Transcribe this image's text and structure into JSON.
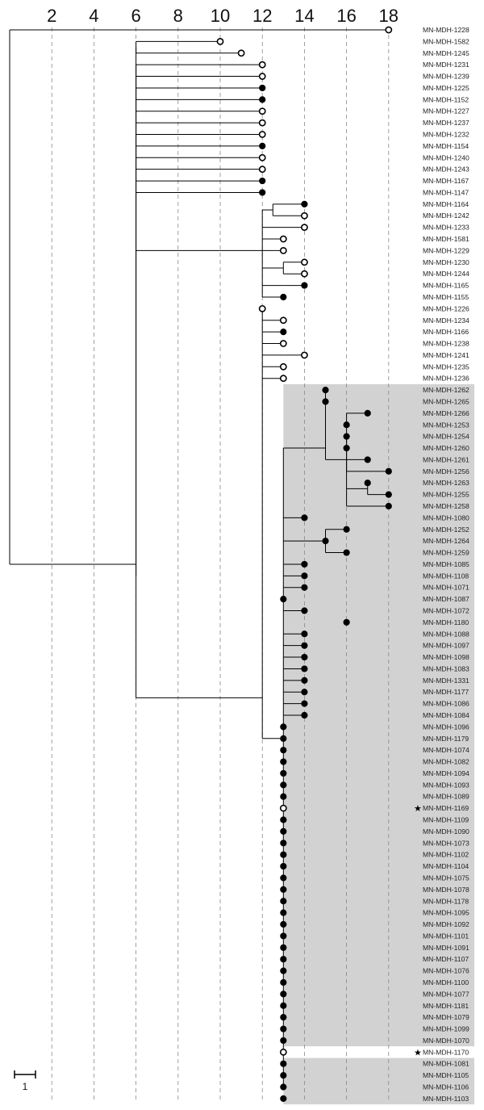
{
  "chart_data": {
    "type": "dendrogram",
    "axis_ticks": [
      2,
      4,
      6,
      8,
      10,
      12,
      14,
      16,
      18
    ],
    "scale_bar_label": "1",
    "colors": {
      "shade": "#d2d2d2",
      "line": "#000000",
      "grid": "#888888"
    },
    "leaves": [
      {
        "label": "MN-MDH-1228",
        "x": 18,
        "filled": false
      },
      {
        "label": "MN-MDH-1582",
        "x": 10,
        "filled": false
      },
      {
        "label": "MN-MDH-1245",
        "x": 11,
        "filled": false
      },
      {
        "label": "MN-MDH-1231",
        "x": 12,
        "filled": false
      },
      {
        "label": "MN-MDH-1239",
        "x": 12,
        "filled": false
      },
      {
        "label": "MN-MDH-1225",
        "x": 12,
        "filled": true
      },
      {
        "label": "MN-MDH-1152",
        "x": 12,
        "filled": true
      },
      {
        "label": "MN-MDH-1227",
        "x": 12,
        "filled": false
      },
      {
        "label": "MN-MDH-1237",
        "x": 12,
        "filled": false
      },
      {
        "label": "MN-MDH-1232",
        "x": 12,
        "filled": false
      },
      {
        "label": "MN-MDH-1154",
        "x": 12,
        "filled": true
      },
      {
        "label": "MN-MDH-1240",
        "x": 12,
        "filled": false
      },
      {
        "label": "MN-MDH-1243",
        "x": 12,
        "filled": false
      },
      {
        "label": "MN-MDH-1167",
        "x": 12,
        "filled": true
      },
      {
        "label": "MN-MDH-1147",
        "x": 12,
        "filled": true
      },
      {
        "label": "MN-MDH-1164",
        "x": 14,
        "filled": true
      },
      {
        "label": "MN-MDH-1242",
        "x": 14,
        "filled": false
      },
      {
        "label": "MN-MDH-1233",
        "x": 14,
        "filled": false
      },
      {
        "label": "MN-MDH-1581",
        "x": 13,
        "filled": false
      },
      {
        "label": "MN-MDH-1229",
        "x": 13,
        "filled": false
      },
      {
        "label": "MN-MDH-1230",
        "x": 14,
        "filled": false
      },
      {
        "label": "MN-MDH-1244",
        "x": 14,
        "filled": false
      },
      {
        "label": "MN-MDH-1165",
        "x": 14,
        "filled": true
      },
      {
        "label": "MN-MDH-1155",
        "x": 13,
        "filled": true
      },
      {
        "label": "MN-MDH-1226",
        "x": 12,
        "filled": false
      },
      {
        "label": "MN-MDH-1234",
        "x": 13,
        "filled": false
      },
      {
        "label": "MN-MDH-1166",
        "x": 13,
        "filled": true
      },
      {
        "label": "MN-MDH-1238",
        "x": 13,
        "filled": false
      },
      {
        "label": "MN-MDH-1241",
        "x": 14,
        "filled": false
      },
      {
        "label": "MN-MDH-1235",
        "x": 13,
        "filled": false
      },
      {
        "label": "MN-MDH-1236",
        "x": 13,
        "filled": false
      },
      {
        "label": "MN-MDH-1262",
        "x": 15,
        "filled": true
      },
      {
        "label": "MN-MDH-1265",
        "x": 15,
        "filled": true
      },
      {
        "label": "MN-MDH-1266",
        "x": 17,
        "filled": true
      },
      {
        "label": "MN-MDH-1253",
        "x": 16,
        "filled": true
      },
      {
        "label": "MN-MDH-1254",
        "x": 16,
        "filled": true
      },
      {
        "label": "MN-MDH-1260",
        "x": 16,
        "filled": true
      },
      {
        "label": "MN-MDH-1261",
        "x": 17,
        "filled": true
      },
      {
        "label": "MN-MDH-1256",
        "x": 18,
        "filled": true
      },
      {
        "label": "MN-MDH-1263",
        "x": 17,
        "filled": true
      },
      {
        "label": "MN-MDH-1255",
        "x": 18,
        "filled": true
      },
      {
        "label": "MN-MDH-1258",
        "x": 18,
        "filled": true
      },
      {
        "label": "MN-MDH-1080",
        "x": 14,
        "filled": true
      },
      {
        "label": "MN-MDH-1252",
        "x": 16,
        "filled": true
      },
      {
        "label": "MN-MDH-1264",
        "x": 15,
        "filled": true
      },
      {
        "label": "MN-MDH-1259",
        "x": 16,
        "filled": true
      },
      {
        "label": "MN-MDH-1085",
        "x": 14,
        "filled": true
      },
      {
        "label": "MN-MDH-1108",
        "x": 14,
        "filled": true
      },
      {
        "label": "MN-MDH-1071",
        "x": 14,
        "filled": true
      },
      {
        "label": "MN-MDH-1087",
        "x": 13,
        "filled": true
      },
      {
        "label": "MN-MDH-1072",
        "x": 14,
        "filled": true
      },
      {
        "label": "MN-MDH-1180",
        "x": 16,
        "filled": true
      },
      {
        "label": "MN-MDH-1088",
        "x": 14,
        "filled": true
      },
      {
        "label": "MN-MDH-1097",
        "x": 14,
        "filled": true
      },
      {
        "label": "MN-MDH-1098",
        "x": 14,
        "filled": true
      },
      {
        "label": "MN-MDH-1083",
        "x": 14,
        "filled": true
      },
      {
        "label": "MN-MDH-1331",
        "x": 14,
        "filled": true
      },
      {
        "label": "MN-MDH-1177",
        "x": 14,
        "filled": true
      },
      {
        "label": "MN-MDH-1086",
        "x": 14,
        "filled": true
      },
      {
        "label": "MN-MDH-1084",
        "x": 14,
        "filled": true
      },
      {
        "label": "MN-MDH-1096",
        "x": 13,
        "filled": true
      },
      {
        "label": "MN-MDH-1179",
        "x": 13,
        "filled": true
      },
      {
        "label": "MN-MDH-1074",
        "x": 13,
        "filled": true
      },
      {
        "label": "MN-MDH-1082",
        "x": 13,
        "filled": true
      },
      {
        "label": "MN-MDH-1094",
        "x": 13,
        "filled": true
      },
      {
        "label": "MN-MDH-1093",
        "x": 13,
        "filled": true
      },
      {
        "label": "MN-MDH-1089",
        "x": 13,
        "filled": true
      },
      {
        "label": "MN-MDH-1169",
        "x": 13,
        "filled": false,
        "star": true
      },
      {
        "label": "MN-MDH-1109",
        "x": 13,
        "filled": true
      },
      {
        "label": "MN-MDH-1090",
        "x": 13,
        "filled": true
      },
      {
        "label": "MN-MDH-1073",
        "x": 13,
        "filled": true
      },
      {
        "label": "MN-MDH-1102",
        "x": 13,
        "filled": true
      },
      {
        "label": "MN-MDH-1104",
        "x": 13,
        "filled": true
      },
      {
        "label": "MN-MDH-1075",
        "x": 13,
        "filled": true
      },
      {
        "label": "MN-MDH-1078",
        "x": 13,
        "filled": true
      },
      {
        "label": "MN-MDH-1178",
        "x": 13,
        "filled": true
      },
      {
        "label": "MN-MDH-1095",
        "x": 13,
        "filled": true
      },
      {
        "label": "MN-MDH-1092",
        "x": 13,
        "filled": true
      },
      {
        "label": "MN-MDH-1101",
        "x": 13,
        "filled": true
      },
      {
        "label": "MN-MDH-1091",
        "x": 13,
        "filled": true
      },
      {
        "label": "MN-MDH-1107",
        "x": 13,
        "filled": true
      },
      {
        "label": "MN-MDH-1076",
        "x": 13,
        "filled": true
      },
      {
        "label": "MN-MDH-1100",
        "x": 13,
        "filled": true
      },
      {
        "label": "MN-MDH-1077",
        "x": 13,
        "filled": true
      },
      {
        "label": "MN-MDH-1181",
        "x": 13,
        "filled": true
      },
      {
        "label": "MN-MDH-1079",
        "x": 13,
        "filled": true
      },
      {
        "label": "MN-MDH-1099",
        "x": 13,
        "filled": true
      },
      {
        "label": "MN-MDH-1070",
        "x": 13,
        "filled": true
      },
      {
        "label": "MN-MDH-1170",
        "x": 13,
        "filled": false,
        "star": true
      },
      {
        "label": "MN-MDH-1081",
        "x": 13,
        "filled": true
      },
      {
        "label": "MN-MDH-1105",
        "x": 13,
        "filled": true
      },
      {
        "label": "MN-MDH-1106",
        "x": 13,
        "filled": true
      },
      {
        "label": "MN-MDH-1103",
        "x": 13,
        "filled": true
      }
    ],
    "nodes": [
      {
        "x": 6,
        "leaves": [
          1,
          2
        ],
        "children": [
          {
            "leaf": 1
          },
          {
            "leaf": 2
          }
        ]
      },
      {
        "x": 12.5,
        "leaves": [
          15,
          16
        ],
        "children": [
          {
            "leaf": 15
          },
          {
            "leaf": 16
          }
        ]
      },
      {
        "x": 13,
        "leaves": [
          20,
          21
        ],
        "children": [
          {
            "leaf": 20
          },
          {
            "leaf": 21
          }
        ]
      },
      {
        "x": 13,
        "leaves": [
          22,
          22
        ],
        "children": [
          {
            "leaf": 22
          }
        ]
      },
      {
        "x": 12,
        "leaves": [
          15,
          23
        ],
        "children": [
          {
            "node": 1
          },
          {
            "leaf": 17
          },
          {
            "leaf": 18
          },
          {
            "leaf": 19
          },
          {
            "node": 2
          },
          {
            "node": 3
          },
          {
            "leaf": 23
          }
        ]
      },
      {
        "x": 13,
        "leaves": [
          28,
          28
        ],
        "children": [
          {
            "leaf": 28
          }
        ]
      },
      {
        "x": 15,
        "leaves": [
          31,
          32
        ],
        "children": [
          {
            "leaf": 31
          },
          {
            "leaf": 32
          }
        ]
      },
      {
        "x": 17,
        "leaves": [
          39,
          40
        ],
        "children": [
          {
            "leaf": 39
          },
          {
            "leaf": 40
          }
        ]
      },
      {
        "x": 16,
        "leaves": [
          35,
          41
        ],
        "children": [
          {
            "leaf": 35
          },
          {
            "leaf": 36
          },
          {
            "leaf": 37
          },
          {
            "leaf": 38
          },
          {
            "node": 7
          },
          {
            "leaf": 41
          }
        ]
      },
      {
        "x": 16,
        "leaves": [
          33,
          41
        ],
        "children": [
          {
            "leaf": 33
          },
          {
            "leaf": 34
          },
          {
            "node": 8
          }
        ]
      },
      {
        "x": 15,
        "leaves": [
          31,
          41
        ],
        "children": [
          {
            "node": 6
          },
          {
            "node": 9
          }
        ]
      },
      {
        "x": 15,
        "leaves": [
          43,
          45
        ],
        "children": [
          {
            "leaf": 43
          },
          {
            "leaf": 44
          },
          {
            "leaf": 45
          }
        ]
      },
      {
        "x": 13,
        "leaves": [
          50,
          50
        ],
        "children": [
          {
            "leaf": 50
          }
        ]
      },
      {
        "x": 13,
        "leaves": [
          31,
          91
        ],
        "children": [
          {
            "node": 10
          },
          {
            "leaf": 42
          },
          {
            "node": 11
          },
          {
            "leaf": 46
          },
          {
            "leaf": 47
          },
          {
            "leaf": 48
          },
          {
            "leaf": 49
          },
          {
            "leaf": 50
          },
          {
            "node": 12
          },
          {
            "leaf": 52
          },
          {
            "leaf": 53
          },
          {
            "leaf": 54
          },
          {
            "leaf": 55
          },
          {
            "leaf": 56
          },
          {
            "leaf": 57
          },
          {
            "leaf": 58
          },
          {
            "leaf": 59
          },
          {
            "leaf": 60
          },
          {
            "leaf": 61
          },
          {
            "leaf": 62
          },
          {
            "leaf": 63
          },
          {
            "leaf": 64
          },
          {
            "leaf": 65
          },
          {
            "leaf": 66
          },
          {
            "leaf": 67
          },
          {
            "leaf": 68
          },
          {
            "leaf": 69
          },
          {
            "leaf": 70
          },
          {
            "leaf": 71
          },
          {
            "leaf": 72
          },
          {
            "leaf": 73
          },
          {
            "leaf": 74
          },
          {
            "leaf": 75
          },
          {
            "leaf": 76
          },
          {
            "leaf": 77
          },
          {
            "leaf": 78
          },
          {
            "leaf": 79
          },
          {
            "leaf": 80
          },
          {
            "leaf": 81
          },
          {
            "leaf": 82
          },
          {
            "leaf": 83
          },
          {
            "leaf": 84
          },
          {
            "leaf": 85
          },
          {
            "leaf": 86
          },
          {
            "leaf": 87
          },
          {
            "leaf": 88
          },
          {
            "leaf": 89
          },
          {
            "leaf": 90
          },
          {
            "leaf": 91
          }
        ]
      },
      {
        "x": 12,
        "leaves": [
          24,
          91
        ],
        "children": [
          {
            "leaf": 24
          },
          {
            "leaf": 25
          },
          {
            "leaf": 26
          },
          {
            "leaf": 27
          },
          {
            "node": 5
          },
          {
            "leaf": 29
          },
          {
            "leaf": 30
          },
          {
            "node": 13
          }
        ]
      },
      {
        "x": 6,
        "leaves": [
          3,
          91
        ],
        "children": [
          {
            "leaf": 3
          },
          {
            "leaf": 4
          },
          {
            "leaf": 5
          },
          {
            "leaf": 6
          },
          {
            "leaf": 7
          },
          {
            "leaf": 8
          },
          {
            "leaf": 9
          },
          {
            "leaf": 10
          },
          {
            "leaf": 11
          },
          {
            "leaf": 12
          },
          {
            "leaf": 13
          },
          {
            "leaf": 14
          },
          {
            "node": 4
          },
          {
            "node": 14
          }
        ]
      },
      {
        "x": 6,
        "leaves": [
          1,
          91
        ],
        "children": [
          {
            "node": 0
          },
          {
            "node": 15
          }
        ]
      },
      {
        "x": 0,
        "leaves": [
          0,
          91
        ],
        "children": [
          {
            "leaf": 0
          },
          {
            "node": 16
          }
        ]
      }
    ]
  }
}
